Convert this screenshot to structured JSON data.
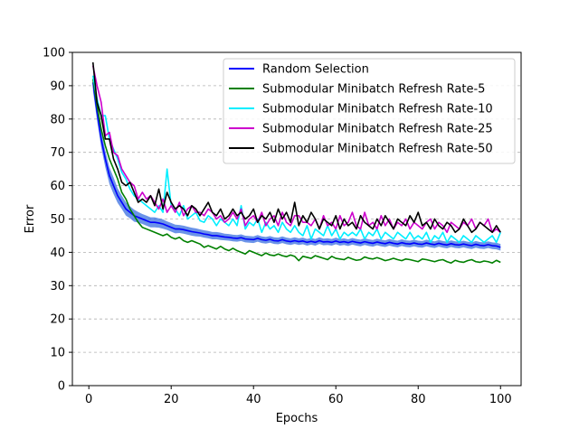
{
  "chart_data": {
    "type": "line",
    "title": "",
    "xlabel": "Epochs",
    "ylabel": "Error",
    "xlim": [
      -4,
      105
    ],
    "ylim": [
      0,
      100
    ],
    "xticks": [
      0,
      20,
      40,
      60,
      80,
      100
    ],
    "yticks": [
      0,
      10,
      20,
      30,
      40,
      50,
      60,
      70,
      80,
      90,
      100
    ],
    "grid": "horizontal-dashed",
    "legend_position": "top-right",
    "x": [
      1,
      2,
      3,
      4,
      5,
      6,
      7,
      8,
      9,
      10,
      11,
      12,
      13,
      14,
      15,
      16,
      17,
      18,
      19,
      20,
      21,
      22,
      23,
      24,
      25,
      26,
      27,
      28,
      29,
      30,
      31,
      32,
      33,
      34,
      35,
      36,
      37,
      38,
      39,
      40,
      41,
      42,
      43,
      44,
      45,
      46,
      47,
      48,
      49,
      50,
      51,
      52,
      53,
      54,
      55,
      56,
      57,
      58,
      59,
      60,
      61,
      62,
      63,
      64,
      65,
      66,
      67,
      68,
      69,
      70,
      71,
      72,
      73,
      74,
      75,
      76,
      77,
      78,
      79,
      80,
      81,
      82,
      83,
      84,
      85,
      86,
      87,
      88,
      89,
      90,
      91,
      92,
      93,
      94,
      95,
      96,
      97,
      98,
      99,
      100
    ],
    "series": [
      {
        "name": "Random Selection",
        "color": "#0000ff",
        "band_color": "#3a6fe0",
        "values": [
          91,
          82,
          74,
          68,
          63,
          60,
          57,
          55,
          53,
          52,
          51,
          50.5,
          50,
          49.5,
          49,
          49,
          48.8,
          48.5,
          48,
          47.5,
          47,
          47,
          46.8,
          46.5,
          46.2,
          46,
          45.8,
          45.5,
          45.3,
          45,
          45,
          44.8,
          44.6,
          44.5,
          44.3,
          44.2,
          44.4,
          44,
          43.9,
          43.8,
          44.2,
          43.8,
          43.6,
          43.9,
          43.5,
          43.4,
          43.8,
          43.4,
          43.2,
          43.5,
          43.2,
          43.4,
          43,
          43.3,
          43,
          43.5,
          43.1,
          43.2,
          43,
          43.4,
          43,
          43.2,
          42.9,
          43.3,
          43,
          42.8,
          43.2,
          42.9,
          42.7,
          43.1,
          42.8,
          42.6,
          43,
          42.7,
          42.5,
          42.9,
          42.6,
          42.5,
          42.8,
          42.5,
          42.4,
          42.8,
          42.5,
          42.3,
          42.7,
          42.4,
          42.2,
          42.6,
          42.3,
          42.2,
          42.5,
          42.2,
          42,
          42.4,
          42.1,
          42,
          42.3,
          42,
          41.9,
          41.5
        ],
        "band_values": [
          2.5,
          2.5,
          2.5,
          2.5,
          2.5,
          2.5,
          2.2,
          2,
          2,
          1.8,
          1.8,
          1.6,
          1.5,
          1.5,
          1.5,
          1.5,
          1.4,
          1.4,
          1.3,
          1.3,
          1.3,
          1.2,
          1.2,
          1.2,
          1.2,
          1.2,
          1.1,
          1.1,
          1.1,
          1.1,
          1.1,
          1.1,
          1,
          1,
          1,
          1,
          1,
          1,
          1,
          1,
          1,
          1,
          1,
          1,
          1,
          1,
          1,
          1,
          1,
          1,
          1,
          1,
          1,
          1,
          1,
          1,
          1,
          1,
          1,
          1,
          1,
          1,
          1,
          1,
          1,
          1,
          1,
          1,
          1,
          1,
          1,
          1,
          1,
          1,
          1,
          1,
          1,
          1,
          1,
          1,
          1,
          1,
          1,
          1,
          1,
          1,
          1,
          1,
          1,
          1,
          1,
          1,
          1,
          1,
          1,
          1,
          1,
          1,
          1,
          1
        ]
      },
      {
        "name": "Submodular Minibatch Refresh Rate-5",
        "color": "#008000",
        "values": [
          92,
          84,
          77,
          72,
          68,
          65,
          62,
          58,
          56,
          53,
          51,
          49,
          47.5,
          47,
          46.5,
          46,
          45.5,
          45,
          45.5,
          44.5,
          44,
          44.5,
          43.5,
          43,
          43.5,
          43,
          42.5,
          41.5,
          42,
          41.5,
          41,
          41.8,
          41,
          40.5,
          41.2,
          40.5,
          40,
          39.5,
          40.5,
          40,
          39.5,
          39,
          39.8,
          39.2,
          39,
          39.5,
          39,
          38.7,
          39.2,
          38.8,
          37.5,
          38.8,
          38.5,
          38.2,
          39,
          38.6,
          38.2,
          37.8,
          38.8,
          38.2,
          38,
          37.8,
          38.5,
          38,
          37.6,
          37.8,
          38.6,
          38.2,
          38,
          38.4,
          38,
          37.5,
          37.8,
          38.2,
          37.8,
          37.5,
          38,
          37.8,
          37.5,
          37.2,
          38,
          37.8,
          37.5,
          37.2,
          37.6,
          37.8,
          37.2,
          36.8,
          37.6,
          37.2,
          37,
          37.5,
          37.8,
          37.2,
          37,
          37.4,
          37.2,
          36.8,
          37.6,
          37
        ]
      },
      {
        "name": "Submodular Minibatch Refresh Rate-10",
        "color": "#00eeff",
        "values": [
          93,
          86,
          81,
          81,
          74,
          71,
          68,
          64,
          62,
          59,
          57,
          56,
          55,
          54,
          53,
          52,
          54,
          52,
          65,
          54,
          53,
          51,
          54,
          50,
          51,
          52,
          49.5,
          49,
          51,
          50,
          48,
          50,
          49,
          48,
          50,
          48,
          54,
          47,
          49,
          48,
          50,
          46,
          49,
          47,
          48,
          46,
          49,
          47,
          46,
          48,
          46,
          45,
          48,
          44,
          47,
          46,
          45,
          48,
          45,
          47,
          44,
          46,
          45,
          46,
          45,
          47,
          44,
          46,
          45,
          47,
          44,
          46,
          45,
          44,
          46,
          45,
          44,
          46,
          44,
          45,
          44,
          46,
          43,
          45,
          44,
          46,
          43,
          45,
          44,
          43,
          45,
          44,
          43,
          45,
          44,
          43,
          44,
          45,
          43,
          46
        ]
      },
      {
        "name": "Submodular Minibatch Refresh Rate-25",
        "color": "#cc00cc",
        "values": [
          96,
          90,
          85,
          75,
          76,
          70,
          69,
          65,
          63,
          61,
          60,
          56,
          58,
          56,
          57,
          55,
          53,
          56,
          52,
          54,
          52,
          55,
          51,
          53,
          54,
          52,
          52,
          51,
          53,
          52,
          50,
          51,
          49,
          50,
          52,
          50,
          53,
          48,
          50,
          51,
          49,
          52,
          48,
          50,
          51,
          48,
          52,
          49,
          48,
          51,
          51,
          49,
          49,
          48,
          50,
          47,
          51,
          48,
          49,
          47,
          51,
          48,
          49,
          52,
          48,
          47,
          52,
          48,
          49,
          47,
          51,
          48,
          50,
          47,
          49,
          48,
          50,
          47,
          49,
          48,
          47,
          49,
          50,
          47,
          49,
          48,
          46,
          49,
          48,
          47,
          49,
          48,
          50,
          47,
          49,
          48,
          50,
          46,
          47,
          46
        ]
      },
      {
        "name": "Submodular Minibatch Refresh Rate-50",
        "color": "#000000",
        "values": [
          97,
          85,
          81,
          74,
          74,
          68,
          65,
          61,
          60,
          61,
          58,
          55,
          56,
          55,
          57,
          54,
          59,
          53,
          58,
          55,
          53,
          54,
          53,
          51,
          54,
          53,
          51,
          53,
          55,
          52,
          51,
          53,
          50,
          51,
          53,
          51,
          52,
          50,
          51,
          53,
          49,
          51,
          50,
          52,
          49,
          53,
          50,
          52,
          49,
          55,
          48,
          51,
          49,
          52,
          50,
          47,
          50,
          49,
          48,
          51,
          47,
          50,
          48,
          49,
          47,
          51,
          49,
          48,
          47,
          50,
          48,
          51,
          49,
          47,
          50,
          49,
          48,
          51,
          49,
          52,
          48,
          49,
          47,
          50,
          48,
          47,
          49,
          48,
          46,
          47,
          50,
          48,
          46,
          47,
          49,
          48,
          47,
          46,
          48,
          46
        ]
      }
    ]
  }
}
